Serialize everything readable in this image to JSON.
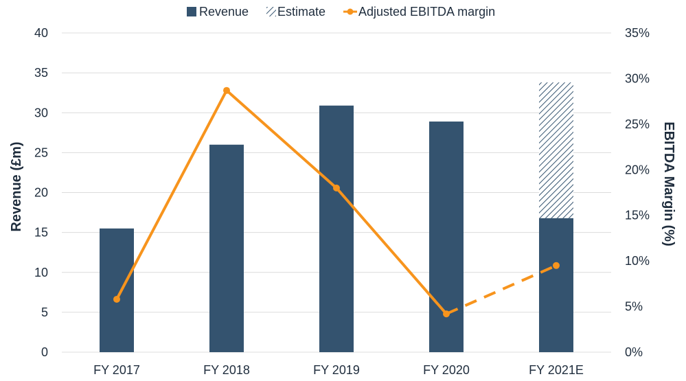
{
  "chart_data": {
    "type": "bar",
    "categories": [
      "FY 2017",
      "FY 2018",
      "FY 2019",
      "FY 2020",
      "FY 2021E"
    ],
    "series": [
      {
        "name": "Revenue",
        "type": "bar",
        "axis": "left",
        "values": [
          15.5,
          26.0,
          30.9,
          28.9,
          16.8
        ]
      },
      {
        "name": "Estimate",
        "type": "bar",
        "axis": "left",
        "stacked_on": "Revenue",
        "values": [
          0,
          0,
          0,
          0,
          17.0
        ]
      },
      {
        "name": "Adjusted EBITDA margin",
        "type": "line",
        "axis": "right",
        "values": [
          5.8,
          28.7,
          18.0,
          4.2,
          9.5
        ],
        "dashed_from_index": 3
      }
    ],
    "ylabel": "Revenue (£m)",
    "y2label": "EBITDA  Margin (%)",
    "ylim": [
      0,
      40
    ],
    "y2lim": [
      0,
      35
    ],
    "yticks": [
      "0",
      "5",
      "10",
      "15",
      "20",
      "25",
      "30",
      "35",
      "40"
    ],
    "y2ticks": [
      "0%",
      "5%",
      "10%",
      "15%",
      "20%",
      "25%",
      "30%",
      "35%"
    ],
    "grid": true,
    "legend_position": "top-center",
    "colors": {
      "bar": "#34536f",
      "line": "#f7941d",
      "grid": "#dcdcdc",
      "text": "#1f2d3d"
    }
  }
}
